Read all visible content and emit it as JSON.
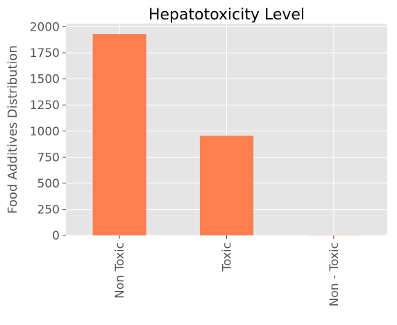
{
  "chart_data": {
    "type": "bar",
    "title": "Hepatotoxicity Level",
    "xlabel": "",
    "ylabel": "Food Additives Distribution",
    "categories": [
      "Non Toxic",
      "Toxic",
      "Non - Toxic"
    ],
    "values": [
      1930,
      955,
      2
    ],
    "ylim": [
      0,
      2030
    ],
    "yticks": [
      0,
      250,
      500,
      750,
      1000,
      1250,
      1500,
      1750,
      2000
    ],
    "ytick_labels": [
      "0",
      "250",
      "500",
      "750",
      "1000",
      "1250",
      "1500",
      "1750",
      "2000"
    ],
    "grid": true,
    "bar_color": "#ff7f50",
    "plot_background": "#e5e5e5"
  }
}
